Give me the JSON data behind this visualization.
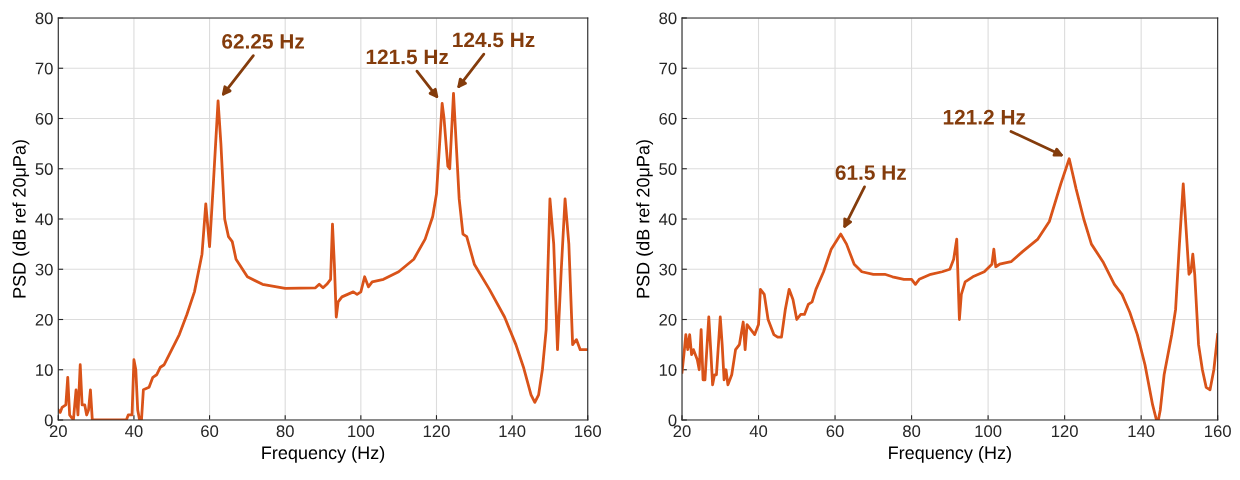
{
  "chart_data": [
    {
      "type": "line",
      "xlabel": "Frequency (Hz)",
      "ylabel": "PSD (dB ref 20μPa)",
      "xlim": [
        20,
        160
      ],
      "ylim": [
        0,
        80
      ],
      "xticks": [
        20,
        40,
        60,
        80,
        100,
        120,
        140,
        160
      ],
      "yticks": [
        0,
        10,
        20,
        30,
        40,
        50,
        60,
        70,
        80
      ],
      "grid": true,
      "marker": "none",
      "line_style": "solid",
      "series": [
        {
          "color": "#d95319",
          "x": [
            20,
            20.5,
            21,
            22,
            22.5,
            23,
            24,
            24.7,
            25.2,
            25.8,
            26.3,
            27,
            27.5,
            28,
            28.5,
            29,
            30,
            38,
            38.5,
            39.5,
            40,
            40.5,
            41,
            41.5,
            42,
            42.5,
            44,
            45,
            46,
            47,
            48,
            50,
            52,
            54,
            56,
            58,
            59,
            60,
            61,
            62.25,
            63,
            64,
            65,
            66,
            67,
            70,
            74,
            80,
            88,
            89,
            90,
            91,
            92,
            92.5,
            93,
            93.5,
            94,
            95,
            98,
            99,
            100,
            101,
            102,
            103,
            106,
            110,
            114,
            117,
            119,
            120,
            121,
            121.5,
            122,
            123,
            123.5,
            124.5,
            125,
            126,
            127,
            128,
            130,
            134,
            138,
            141,
            143,
            145,
            146,
            147,
            148,
            149,
            150,
            151,
            152,
            153,
            154,
            155,
            156,
            157,
            158,
            159,
            160
          ],
          "values": [
            2,
            1.5,
            2.5,
            3,
            8.5,
            1,
            0,
            6,
            1,
            11,
            3,
            3,
            1,
            2,
            6,
            0,
            0,
            0,
            1,
            1,
            12,
            10,
            2,
            0,
            0,
            6,
            6.5,
            8.5,
            9,
            10.5,
            11,
            14,
            17,
            21,
            25.5,
            33,
            43,
            34.5,
            47,
            63.5,
            55,
            40,
            36.5,
            35.5,
            32,
            28.5,
            27,
            26.2,
            26.3,
            27,
            26.3,
            27,
            28,
            39,
            31,
            20.5,
            23.5,
            24.5,
            25.5,
            25,
            25.5,
            28.5,
            26.5,
            27.5,
            28,
            29.5,
            32,
            36,
            40.5,
            45,
            57,
            63,
            60,
            50.5,
            50,
            65,
            58,
            44,
            37,
            36.5,
            31,
            26,
            20.5,
            15,
            10.5,
            5,
            3.5,
            5,
            10,
            18,
            44,
            35,
            14,
            30,
            44,
            35,
            15,
            16,
            14,
            14,
            14
          ]
        }
      ],
      "annotations": [
        {
          "text": "62.25 Hz",
          "x": 62.25,
          "y": 63.5
        },
        {
          "text": "121.5 Hz",
          "x": 121.5,
          "y": 63
        },
        {
          "text": "124.5 Hz",
          "x": 124.5,
          "y": 65
        }
      ]
    },
    {
      "type": "line",
      "xlabel": "Frequency (Hz)",
      "ylabel": "PSD (dB ref 20μPa)",
      "xlim": [
        20,
        160
      ],
      "ylim": [
        0,
        80
      ],
      "xticks": [
        20,
        40,
        60,
        80,
        100,
        120,
        140,
        160
      ],
      "yticks": [
        0,
        10,
        20,
        30,
        40,
        50,
        60,
        70,
        80
      ],
      "grid": true,
      "marker": "none",
      "line_style": "solid",
      "series": [
        {
          "color": "#d95319",
          "x": [
            20,
            20.5,
            21,
            21.5,
            22,
            22.5,
            23,
            24,
            24.5,
            25,
            25.5,
            26,
            27,
            27.5,
            28,
            28.5,
            29,
            30,
            30.5,
            31,
            31.5,
            32,
            33,
            34,
            35,
            36,
            36.5,
            37,
            38,
            39,
            40,
            40.5,
            41.5,
            42.5,
            44,
            45,
            46,
            47,
            48,
            49,
            50,
            51,
            52,
            53,
            54,
            55,
            57,
            59,
            61.5,
            63,
            65,
            67,
            70,
            73,
            75,
            78,
            80,
            81,
            82,
            85,
            88,
            90,
            91,
            91.8,
            92.5,
            93,
            94,
            96,
            99,
            101,
            101.5,
            102,
            103,
            106,
            109,
            113,
            116,
            119,
            121.2,
            123,
            125,
            127,
            130,
            133,
            135,
            137,
            139,
            141,
            143,
            144,
            144.5,
            145,
            146,
            148,
            149,
            150,
            151,
            152,
            152.5,
            153,
            153.5,
            154,
            155,
            156,
            157,
            158,
            159,
            160
          ],
          "values": [
            9.5,
            13,
            17,
            14,
            17,
            13,
            14,
            12,
            10,
            18,
            8,
            8,
            20.5,
            14,
            7,
            9,
            9,
            20.5,
            15,
            8,
            10,
            7,
            9,
            14,
            15,
            19.5,
            14,
            19,
            18,
            17,
            19,
            26,
            25,
            20,
            17,
            16.5,
            16.5,
            22,
            26,
            24,
            20,
            21,
            21,
            23,
            23.5,
            26,
            29.5,
            34,
            37,
            35,
            31,
            29.5,
            29,
            29,
            28.5,
            28,
            28,
            27,
            28,
            29,
            29.5,
            30,
            32,
            36,
            20,
            25,
            27.5,
            28.5,
            29.5,
            31,
            34,
            30.5,
            31,
            31.5,
            33.5,
            36,
            39.5,
            47,
            52,
            46,
            40,
            35,
            31.5,
            27,
            25,
            21.5,
            17,
            11,
            3,
            0,
            0,
            2,
            9,
            17,
            22,
            35,
            47,
            35,
            29,
            29.5,
            33,
            29,
            15,
            10,
            6.5,
            6,
            10,
            17
          ]
        }
      ],
      "annotations": [
        {
          "text": "61.5 Hz",
          "x": 61.5,
          "y": 37
        },
        {
          "text": "121.2 Hz",
          "x": 121.2,
          "y": 52
        }
      ]
    }
  ]
}
